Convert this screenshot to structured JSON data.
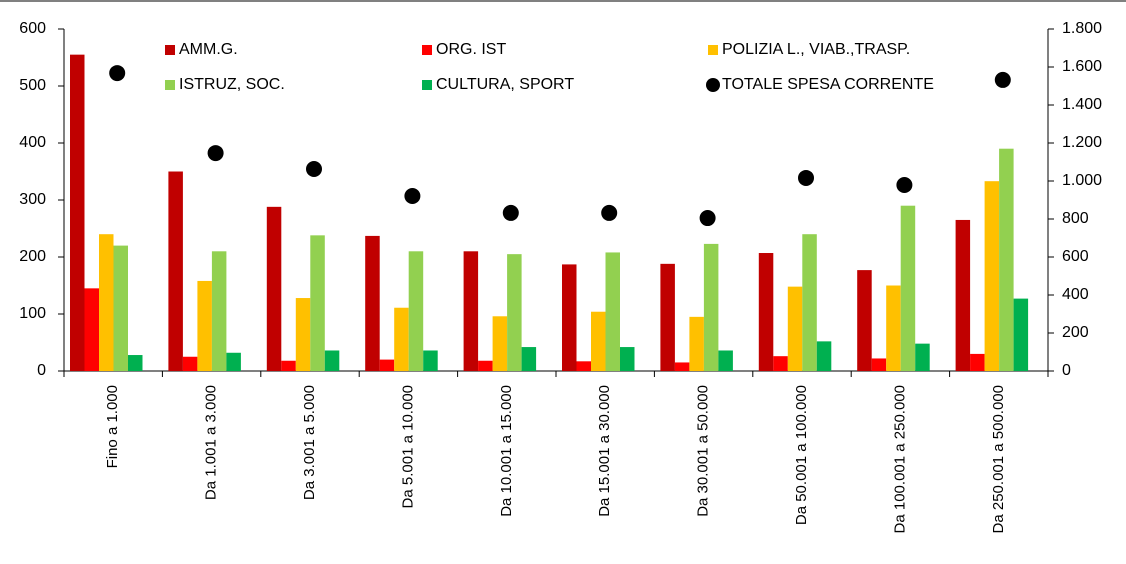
{
  "chart_data": {
    "type": "bar",
    "categories": [
      "Fino a 1.000",
      "Da 1.001 a 3.000",
      "Da 3.001 a 5.000",
      "Da 5.001 a 10.000",
      "Da 10.001 a 15.000",
      "Da 15.001 a 30.000",
      "Da 30.001 a 50.000",
      "Da 50.001 a 100.000",
      "Da 100.001 a 250.000",
      "Da 250.001 a 500.000"
    ],
    "series": [
      {
        "name": "AMM.G.",
        "color": "#c00000",
        "values": [
          555,
          350,
          288,
          237,
          210,
          187,
          188,
          207,
          177,
          265
        ]
      },
      {
        "name": "ORG. IST",
        "color": "#ff0000",
        "values": [
          145,
          25,
          18,
          20,
          18,
          17,
          15,
          26,
          22,
          30
        ]
      },
      {
        "name": "POLIZIA L., VIAB.,TRASP.",
        "color": "#ffc000",
        "values": [
          240,
          158,
          128,
          111,
          96,
          104,
          95,
          148,
          150,
          333
        ]
      },
      {
        "name": "ISTRUZ, SOC.",
        "color": "#92d050",
        "values": [
          220,
          210,
          238,
          210,
          205,
          208,
          223,
          240,
          290,
          390
        ]
      },
      {
        "name": "CULTURA, SPORT",
        "color": "#00b050",
        "values": [
          28,
          32,
          36,
          36,
          42,
          42,
          36,
          52,
          48,
          127
        ]
      },
      {
        "name": "TOTALE SPESA CORRENTE",
        "color": "#000000",
        "axis": "y2",
        "values": [
          1568,
          1147,
          1063,
          921,
          832,
          832,
          805,
          1016,
          979,
          1532
        ]
      }
    ],
    "ylim": [
      0,
      600
    ],
    "yticks": [
      0,
      100,
      200,
      300,
      400,
      500,
      600
    ],
    "y2lim": [
      0,
      1800
    ],
    "y2ticks": [
      0,
      200,
      400,
      600,
      800,
      {
        "value": 1000,
        "label": "1.000"
      },
      {
        "value": 1200,
        "label": "1.200"
      },
      {
        "value": 1400,
        "label": "1.400"
      },
      {
        "value": 1600,
        "label": "1.600"
      },
      {
        "value": 1800,
        "label": "1.800"
      }
    ]
  }
}
